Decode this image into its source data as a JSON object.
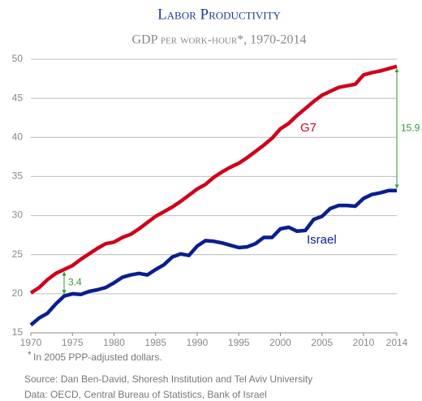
{
  "chart_data": {
    "type": "line",
    "title": "Labor Productivity",
    "subtitle": "GDP per work-hour*, 1970-2014",
    "x": [
      1970,
      1971,
      1972,
      1973,
      1974,
      1975,
      1976,
      1977,
      1978,
      1979,
      1980,
      1981,
      1982,
      1983,
      1984,
      1985,
      1986,
      1987,
      1988,
      1989,
      1990,
      1991,
      1992,
      1993,
      1994,
      1995,
      1996,
      1997,
      1998,
      1999,
      2000,
      2001,
      2002,
      2003,
      2004,
      2005,
      2006,
      2007,
      2008,
      2009,
      2010,
      2011,
      2012,
      2013,
      2014
    ],
    "series": [
      {
        "name": "G7",
        "color": "#d0021b",
        "values": [
          20.1,
          20.8,
          21.8,
          22.6,
          23.1,
          23.6,
          24.4,
          25.1,
          25.8,
          26.4,
          26.6,
          27.2,
          27.6,
          28.3,
          29.1,
          29.9,
          30.5,
          31.1,
          31.8,
          32.6,
          33.4,
          34.0,
          34.9,
          35.6,
          36.2,
          36.7,
          37.4,
          38.2,
          39.0,
          39.9,
          41.1,
          41.8,
          42.8,
          43.7,
          44.6,
          45.4,
          45.9,
          46.4,
          46.6,
          46.8,
          48.0,
          48.3,
          48.5,
          48.8,
          49.1
        ]
      },
      {
        "name": "Israel",
        "color": "#0a1f8f",
        "values": [
          16.0,
          16.9,
          17.5,
          18.7,
          19.7,
          20.0,
          19.9,
          20.3,
          20.5,
          20.8,
          21.4,
          22.1,
          22.4,
          22.6,
          22.4,
          23.1,
          23.7,
          24.7,
          25.1,
          24.9,
          26.1,
          26.8,
          26.7,
          26.5,
          26.2,
          25.9,
          26.0,
          26.4,
          27.2,
          27.2,
          28.3,
          28.5,
          28.0,
          28.1,
          29.5,
          29.9,
          30.9,
          31.3,
          31.3,
          31.2,
          32.2,
          32.7,
          32.9,
          33.2,
          33.2
        ]
      }
    ],
    "xlim": [
      1970,
      2014
    ],
    "xticks": [
      1970,
      1975,
      1980,
      1985,
      1990,
      1995,
      2000,
      2005,
      2010,
      2014
    ],
    "ylim": [
      15,
      50
    ],
    "yticks": [
      15,
      20,
      25,
      30,
      35,
      40,
      45,
      50
    ],
    "grid": true,
    "annotations": [
      "3.4",
      "15.9"
    ],
    "footnote": "In 2005 PPP-adjusted dollars.",
    "source": [
      "Source: Dan Ben-David, Shoresh Institution and Tel Aviv University",
      "Data: OECD, Central Bureau of Statistics, Bank of Israel"
    ]
  }
}
